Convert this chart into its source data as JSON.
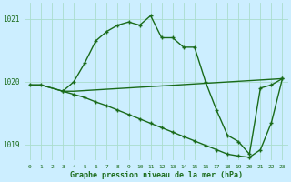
{
  "background_color": "#cceeff",
  "grid_color": "#aaddcc",
  "line_color": "#1a6b1a",
  "xlabel": "Graphe pression niveau de la mer (hPa)",
  "ylim": [
    1018.75,
    1021.25
  ],
  "xlim": [
    -0.5,
    23.5
  ],
  "yticks": [
    1019,
    1020,
    1021
  ],
  "xticks": [
    0,
    1,
    2,
    3,
    4,
    5,
    6,
    7,
    8,
    9,
    10,
    11,
    12,
    13,
    14,
    15,
    16,
    17,
    18,
    19,
    20,
    21,
    22,
    23
  ],
  "line1_x": [
    0,
    1,
    3,
    4,
    5,
    6,
    7,
    8,
    9,
    10,
    11,
    12,
    13,
    14,
    15,
    16,
    17,
    18,
    19,
    20,
    21,
    22,
    23
  ],
  "line1_y": [
    1019.95,
    1019.95,
    1019.85,
    1020.0,
    1020.3,
    1020.65,
    1020.8,
    1020.9,
    1020.95,
    1020.9,
    1021.05,
    1020.7,
    1020.7,
    1020.55,
    1020.55,
    1020.0,
    1019.55,
    1019.15,
    1019.05,
    1018.85,
    1019.9,
    1019.95,
    1020.05
  ],
  "line2_x": [
    0,
    1,
    3,
    4,
    23
  ],
  "line2_y": [
    1019.95,
    1019.95,
    1019.85,
    1019.85,
    1020.05
  ],
  "line3_x": [
    3,
    4,
    5,
    6,
    7,
    8,
    9,
    10,
    11,
    12,
    13,
    14,
    15,
    16,
    17,
    18,
    19,
    20,
    21,
    22,
    23
  ],
  "line3_y": [
    1019.85,
    1019.8,
    1019.75,
    1019.68,
    1019.62,
    1019.55,
    1019.48,
    1019.41,
    1019.34,
    1019.27,
    1019.2,
    1019.13,
    1019.06,
    1018.99,
    1018.92,
    1018.85,
    1018.82,
    1018.8,
    1018.92,
    1019.35,
    1020.05
  ]
}
